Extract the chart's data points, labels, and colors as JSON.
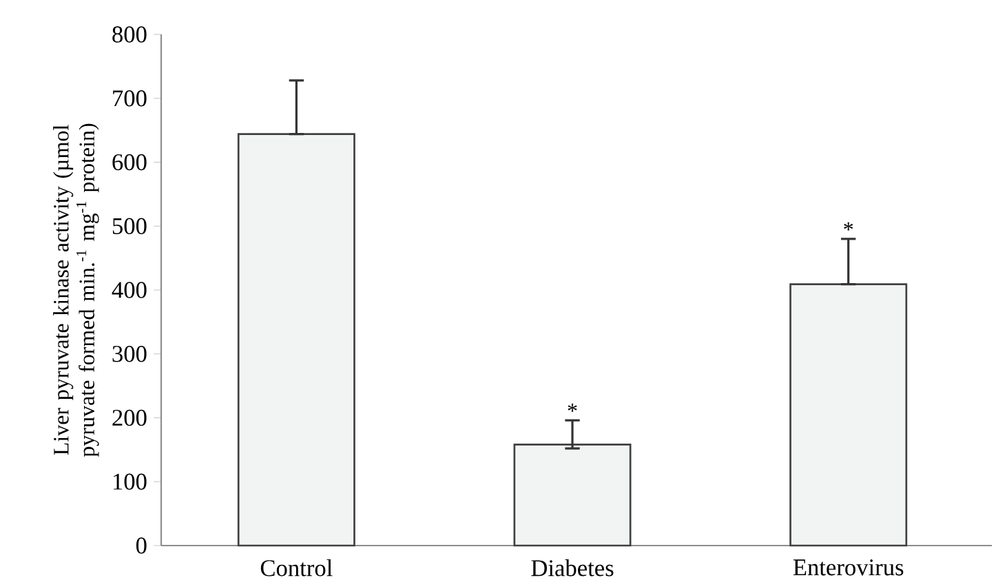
{
  "chart_data": {
    "type": "bar",
    "ylabel": "Liver pyruvate kinase activity (µmol pyruvate formed min.$^{-1}$ mg$^{-1}$ protein)",
    "categories": [
      "Control",
      "Diabetes",
      "Enterovirus"
    ],
    "values": [
      644,
      158,
      409
    ],
    "errors": [
      [
        644,
        728
      ],
      [
        152,
        196
      ],
      [
        409,
        480
      ]
    ],
    "color": "#f2f3f3",
    "ylim": [
      0,
      800
    ],
    "yticks": [
      0,
      100,
      200,
      300,
      400,
      500,
      600,
      700,
      800
    ],
    "annotations": [
      {
        "text": "*",
        "x": "Diabetes",
        "y": 196
      },
      {
        "text": "*",
        "x": "Enterovirus",
        "y": 480
      }
    ]
  }
}
